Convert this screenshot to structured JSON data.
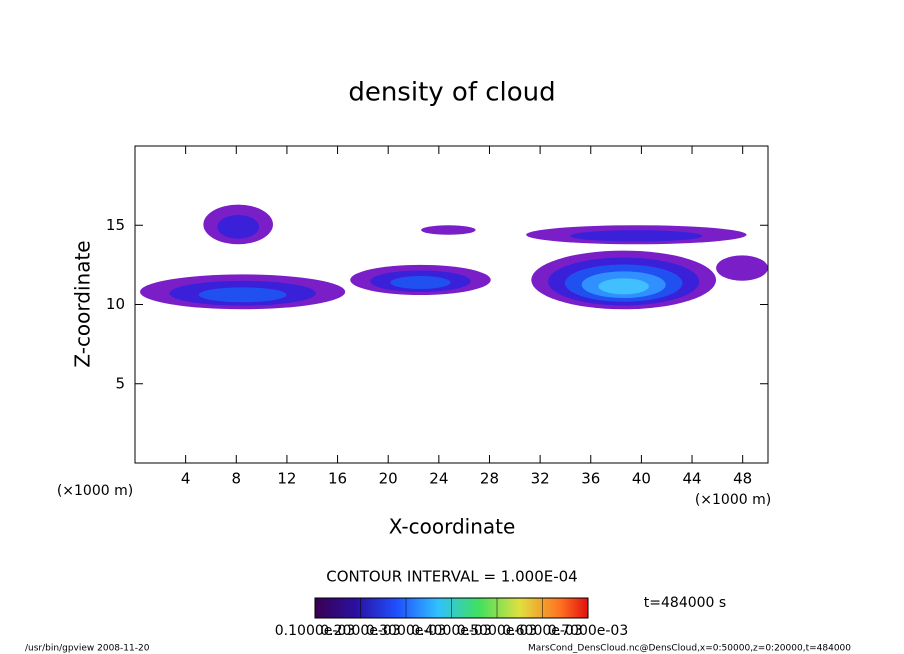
{
  "chart_data": {
    "type": "contour",
    "title": "density of cloud",
    "x_label": "X-coordinate",
    "y_label": "Z-coordinate",
    "x_unit": "(×1000 m)",
    "y_unit": "(×1000 m)",
    "xlim": [
      0,
      50
    ],
    "ylim": [
      0,
      20
    ],
    "xticks": [
      4,
      8,
      12,
      16,
      20,
      24,
      28,
      32,
      36,
      40,
      44,
      48
    ],
    "yticks": [
      5,
      10,
      15
    ],
    "regions": [
      {
        "x": [
          0.4,
          16.6
        ],
        "z": [
          9.7,
          11.9
        ],
        "value": 0.0003
      },
      {
        "x": [
          5.4,
          10.9
        ],
        "z": [
          13.8,
          16.3
        ],
        "value": 0.0002
      },
      {
        "x": [
          17,
          28.1
        ],
        "z": [
          10.6,
          12.5
        ],
        "value": 0.0003
      },
      {
        "x": [
          22.6,
          26.9
        ],
        "z": [
          14.4,
          15
        ],
        "value": 0.0001
      },
      {
        "x": [
          30.9,
          48.3
        ],
        "z": [
          13.8,
          15
        ],
        "value": 0.0002
      },
      {
        "x": [
          31.3,
          45.9
        ],
        "z": [
          9.7,
          13.4
        ],
        "value": 0.0005
      },
      {
        "x": [
          45.9,
          50
        ],
        "z": [
          11.5,
          13.1
        ],
        "value": 0.0001
      }
    ],
    "contour_interval": "CONTOUR INTERVAL = 1.000E-04",
    "colorbar_ticks": [
      {
        "value": 0.0001,
        "label": "0.1000e-03"
      },
      {
        "value": 0.0002,
        "label": "0.2000e-03"
      },
      {
        "value": 0.0003,
        "label": "0.3000e-03"
      },
      {
        "value": 0.0004,
        "label": "0.4000e-03"
      },
      {
        "value": 0.0005,
        "label": "0.5000e-03"
      },
      {
        "value": 0.0006,
        "label": "0.6000e-03"
      },
      {
        "value": 0.0007,
        "label": "0.7000e-03"
      }
    ],
    "time_label": "t=484000 s",
    "footer_left": "/usr/bin/gpview  2008-11-20",
    "footer_right": "MarsCond_DensCloud.nc@DensCloud,x=0:50000,z=0:20000,t=484000"
  }
}
